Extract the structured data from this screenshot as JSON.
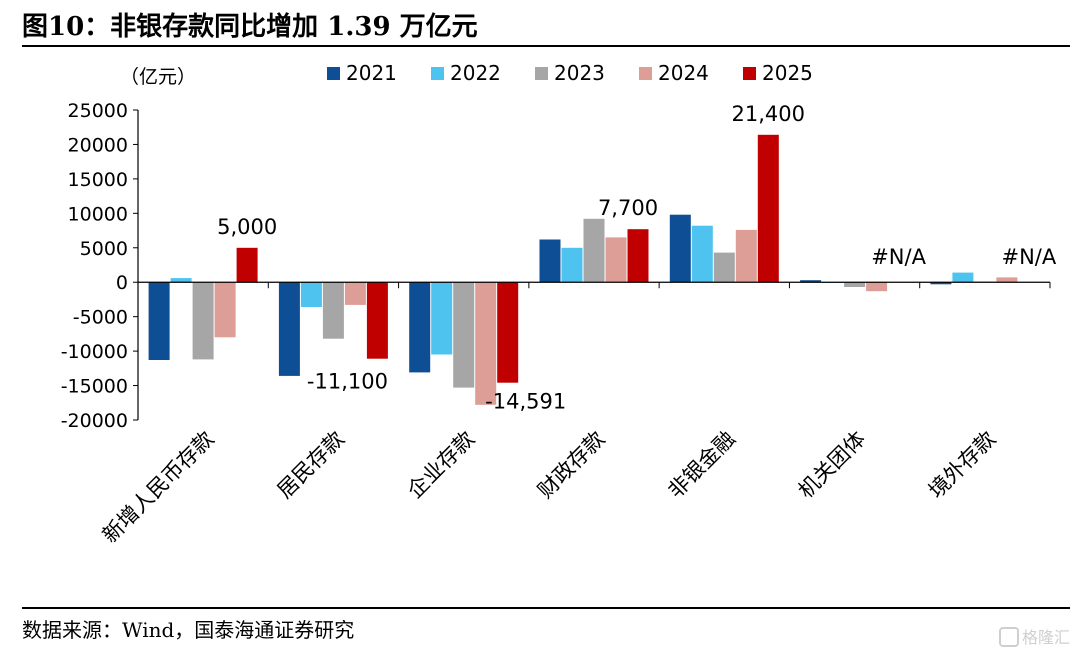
{
  "header": {
    "title": "图10：非银存款同比增加 1.39 万亿元"
  },
  "footer": {
    "source": "数据来源：Wind，国泰海通证券研究",
    "watermark": "格隆汇"
  },
  "colors": {
    "2021": "#0e4e95",
    "2022": "#4ec3f0",
    "2023": "#a6a6a6",
    "2024": "#dc9e96",
    "2025": "#c00000"
  },
  "chart_data": {
    "type": "bar",
    "title": "",
    "ylabel": "（亿元）",
    "xlabel": "",
    "ylim": [
      -20000,
      25000
    ],
    "yticks": [
      25000,
      20000,
      15000,
      10000,
      5000,
      0,
      -5000,
      -10000,
      -15000,
      -20000
    ],
    "grid": false,
    "legend_position": "top",
    "categories": [
      "新增人民币存款",
      "居民存款",
      "企业存款",
      "财政存款",
      "非银金融",
      "机关团体",
      "境外存款"
    ],
    "series": [
      {
        "name": "2021",
        "values": [
          -11300,
          -13600,
          -13100,
          6200,
          9800,
          300,
          -300
        ]
      },
      {
        "name": "2022",
        "values": [
          600,
          -3600,
          -10500,
          5000,
          8200,
          0,
          1400
        ]
      },
      {
        "name": "2023",
        "values": [
          -11200,
          -8200,
          -15300,
          9200,
          4300,
          -700,
          100
        ]
      },
      {
        "name": "2024",
        "values": [
          -8000,
          -3300,
          -17800,
          6500,
          7600,
          -1300,
          700
        ]
      },
      {
        "name": "2025",
        "values": [
          5000,
          -11100,
          -14591,
          7700,
          21400,
          null,
          null
        ]
      }
    ],
    "annotations": [
      {
        "category": 0,
        "series": 4,
        "value": 5000,
        "text": "5,000"
      },
      {
        "category": 1,
        "series": 4,
        "value": -11100,
        "text": "-11,100"
      },
      {
        "category": 2,
        "series": 4,
        "value": -14591,
        "text": "-14,591"
      },
      {
        "category": 3,
        "series": 4,
        "value": 7700,
        "text": "7,700"
      },
      {
        "category": 4,
        "series": 4,
        "value": 21400,
        "text": "21,400"
      },
      {
        "category": 5,
        "series": 4,
        "value": null,
        "text": "#N/A"
      },
      {
        "category": 6,
        "series": 4,
        "value": null,
        "text": "#N/A"
      }
    ]
  }
}
